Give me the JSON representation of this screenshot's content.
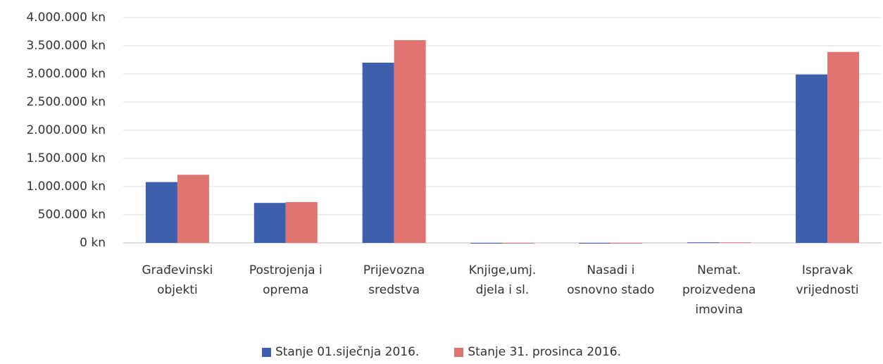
{
  "chart_data": {
    "type": "bar",
    "categories": [
      "Građevinski objekti",
      "Postrojenja i oprema",
      "Prijevozna sredstva",
      "Knjige,umj. djela i sl.",
      "Nasadi i osnovno stado",
      "Nemat. proizvedena imovina",
      "Ispravak vrijednosti"
    ],
    "series": [
      {
        "name": "Stanje 01.siječnja 2016.",
        "color": "#3d5fad",
        "values": [
          1080000,
          710000,
          3200000,
          0,
          0,
          10000,
          2990000
        ]
      },
      {
        "name": "Stanje 31. prosinca 2016.",
        "color": "#e07470",
        "values": [
          1210000,
          725000,
          3600000,
          0,
          0,
          10000,
          3390000
        ]
      }
    ],
    "ylim": [
      0,
      4000000
    ],
    "yticks": [
      {
        "value": 0,
        "label": "0 kn"
      },
      {
        "value": 500000,
        "label": "500.000 kn"
      },
      {
        "value": 1000000,
        "label": "1.000.000 kn"
      },
      {
        "value": 1500000,
        "label": "1.500.000 kn"
      },
      {
        "value": 2000000,
        "label": "2.000.000 kn"
      },
      {
        "value": 2500000,
        "label": "2.500.000 kn"
      },
      {
        "value": 3000000,
        "label": "3.000.000 kn"
      },
      {
        "value": 3500000,
        "label": "3.500.000 kn"
      },
      {
        "value": 4000000,
        "label": "4.000.000 kn"
      }
    ],
    "grid": true,
    "legend": "bottom"
  }
}
